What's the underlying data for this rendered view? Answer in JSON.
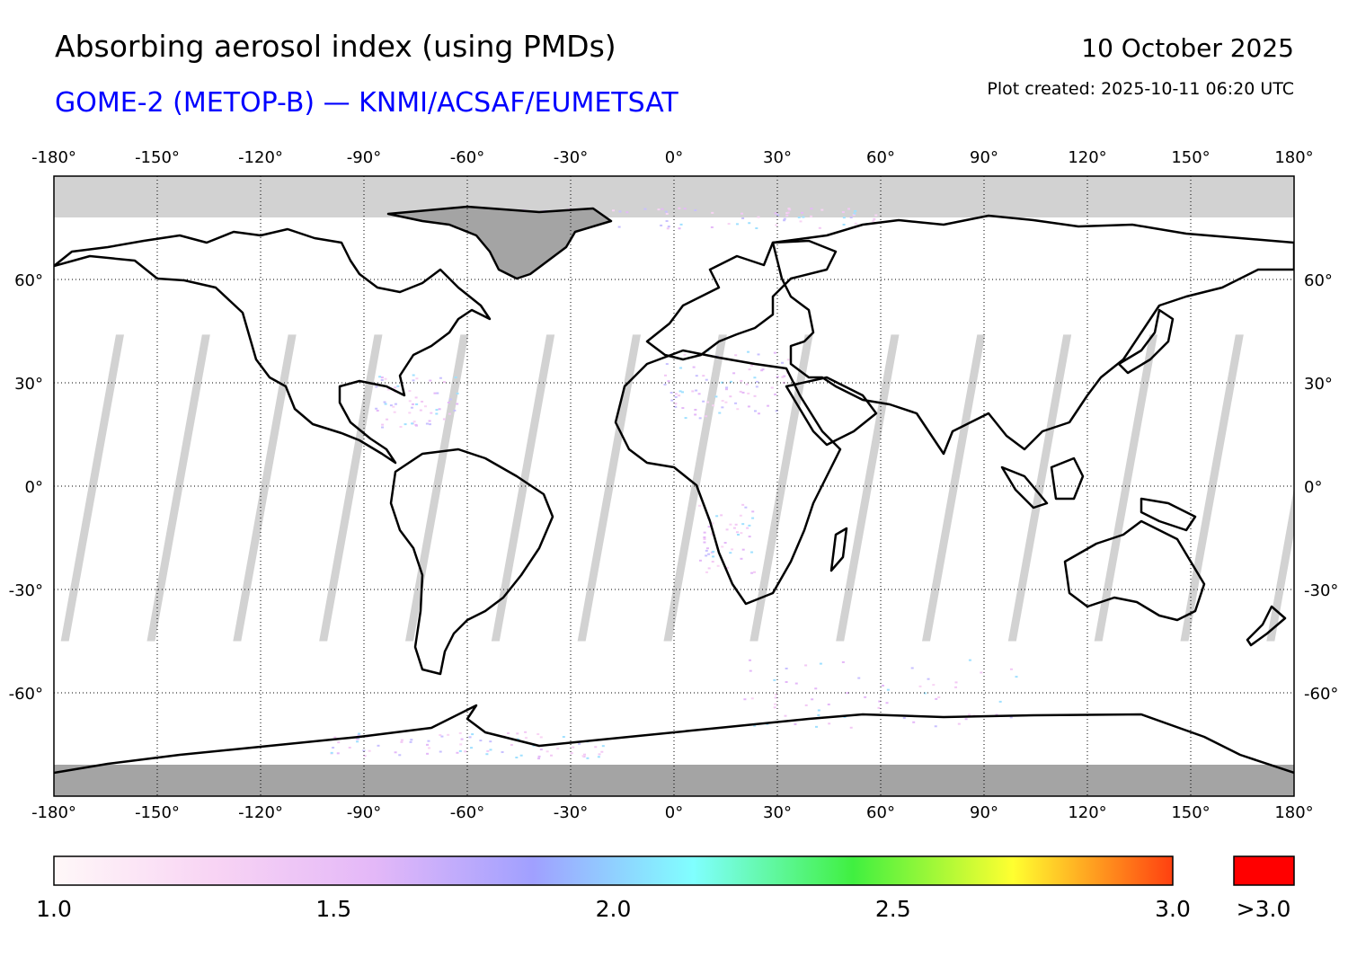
{
  "header": {
    "title": "Absorbing aerosol index (using PMDs)",
    "subtitle": "GOME-2 (METOP-B) — KNMI/ACSAF/EUMETSAT",
    "date": "10 October 2025",
    "created": "Plot created: 2025-10-11 06:20 UTC"
  },
  "map": {
    "projection": "equirectangular",
    "lon_range": [
      -180,
      180
    ],
    "lat_range": [
      -90,
      90
    ],
    "lon_ticks": [
      -180,
      -150,
      -120,
      -90,
      -60,
      -30,
      0,
      30,
      60,
      90,
      120,
      150,
      180
    ],
    "lon_tick_labels": [
      "-180°",
      "-150°",
      "-120°",
      "-90°",
      "-60°",
      "-30°",
      "0°",
      "30°",
      "60°",
      "90°",
      "120°",
      "150°",
      "180°"
    ],
    "lat_ticks": [
      60,
      30,
      0,
      -30,
      -60
    ],
    "lat_tick_labels": [
      "60°",
      "30°",
      "0°",
      "-30°",
      "-60°"
    ],
    "grid": true,
    "no_data_color": "#d2d2d2",
    "overlap_color": "#a4a4a4",
    "coast_color": "#000000"
  },
  "colorbar": {
    "range": [
      1.0,
      3.0
    ],
    "tick_labels": [
      "1.0",
      "1.5",
      "2.0",
      "2.5",
      "3.0"
    ],
    "over_label": ">3.0",
    "over_color": "#ff0000",
    "stops": [
      "#fff8f8",
      "#f8d4f4",
      "#e4b8f8",
      "#a0a0ff",
      "#80ffff",
      "#40f040",
      "#ffff30",
      "#ff4010"
    ]
  }
}
